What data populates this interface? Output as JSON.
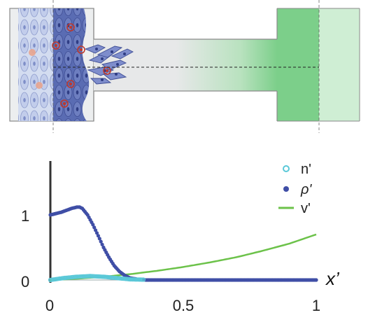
{
  "colors": {
    "channel_gray": "#e2e4e6",
    "channel_outline": "#8a8a8a",
    "tissue_light": "#c9d3ec",
    "tissue_dark": "#5d6fb3",
    "cell_fill": "#8d9bd2",
    "cell_nucleus_red": "#c0392b",
    "green_reservoir": "#7ccf8a",
    "green_light": "#cfeed4",
    "n_color": "#5ac8d8",
    "rho_color": "#3f4ea6",
    "v_color": "#6cc24a",
    "axis": "#333333"
  },
  "chart_data": {
    "type": "line",
    "xlabel": "x’",
    "ylabel": "",
    "xlim": [
      0,
      1
    ],
    "ylim": [
      0,
      1.3
    ],
    "x_ticks": [
      "0",
      "0.5",
      "1"
    ],
    "y_ticks": [
      "0",
      "1"
    ],
    "legend_position": "top-right",
    "series": [
      {
        "name": "n'",
        "style": "markers-open",
        "x": [
          0,
          0.05,
          0.1,
          0.15,
          0.2,
          0.25,
          0.3,
          0.4,
          0.5,
          0.7,
          1.0
        ],
        "y": [
          0.0,
          0.03,
          0.05,
          0.06,
          0.05,
          0.03,
          0.01,
          0.0,
          0.0,
          0.0,
          0.0
        ]
      },
      {
        "name": "ρ'",
        "style": "markers-filled",
        "x": [
          0,
          0.02,
          0.04,
          0.06,
          0.08,
          0.1,
          0.11,
          0.12,
          0.14,
          0.16,
          0.18,
          0.2,
          0.22,
          0.24,
          0.26,
          0.28,
          0.3,
          0.33,
          0.36,
          0.4,
          0.5,
          0.7,
          1.0
        ],
        "y": [
          1.0,
          1.02,
          1.04,
          1.07,
          1.1,
          1.12,
          1.12,
          1.1,
          1.0,
          0.85,
          0.68,
          0.5,
          0.35,
          0.22,
          0.13,
          0.07,
          0.03,
          0.01,
          0.0,
          0.0,
          0.0,
          0.0,
          0.0
        ]
      },
      {
        "name": "v'",
        "style": "line",
        "x": [
          0,
          0.1,
          0.2,
          0.3,
          0.4,
          0.5,
          0.6,
          0.7,
          0.8,
          0.9,
          1.0
        ],
        "y": [
          0.0,
          0.02,
          0.05,
          0.09,
          0.14,
          0.2,
          0.27,
          0.35,
          0.45,
          0.56,
          0.7
        ]
      }
    ]
  }
}
